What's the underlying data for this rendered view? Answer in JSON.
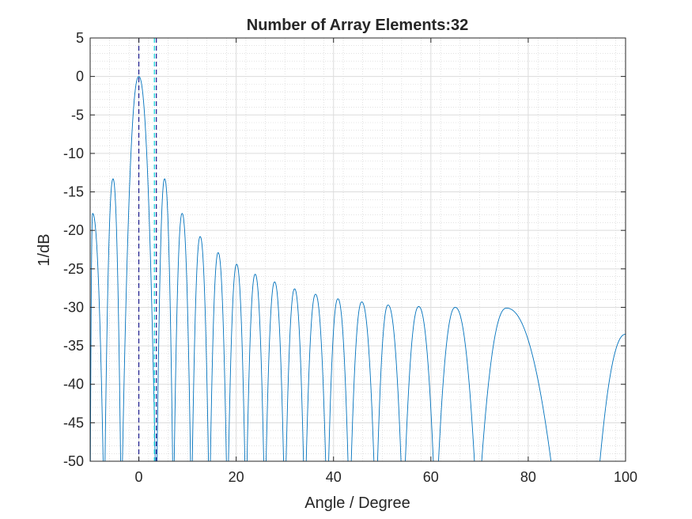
{
  "chart_data": {
    "type": "line",
    "title": "Number of Array Elements:32",
    "xlabel": "Angle / Degree",
    "ylabel": "1/dB",
    "xlim": [
      -10,
      100
    ],
    "ylim": [
      -50,
      5
    ],
    "xticks": [
      0,
      20,
      40,
      60,
      80,
      100
    ],
    "yticks": [
      5,
      0,
      -5,
      -10,
      -15,
      -20,
      -25,
      -30,
      -35,
      -40,
      -45,
      -50
    ],
    "grid": "major and minor",
    "series": [
      {
        "color": "#0072bd",
        "lobes": [
          {
            "start": -10.0,
            "end": -7.1,
            "peak_x": -9.5,
            "peak_y": -17.8
          },
          {
            "start": -7.1,
            "end": -3.6,
            "peak_x": -5.3,
            "peak_y": -13.3
          },
          {
            "start": -3.6,
            "end": 3.6,
            "peak_x": 0,
            "peak_y": 0
          },
          {
            "start": 3.6,
            "end": 7.1,
            "peak_x": 5.3,
            "peak_y": -13.3
          },
          {
            "start": 7.1,
            "end": 10.8,
            "peak_x": 8.9,
            "peak_y": -17.8
          },
          {
            "start": 10.8,
            "end": 14.5,
            "peak_x": 12.6,
            "peak_y": -20.8
          },
          {
            "start": 14.5,
            "end": 18.2,
            "peak_x": 16.3,
            "peak_y": -22.9
          },
          {
            "start": 18.2,
            "end": 22.0,
            "peak_x": 20.1,
            "peak_y": -24.4
          },
          {
            "start": 22.0,
            "end": 25.9,
            "peak_x": 23.9,
            "peak_y": -25.7
          },
          {
            "start": 25.9,
            "end": 30.0,
            "peak_x": 27.9,
            "peak_y": -26.7
          },
          {
            "start": 30.0,
            "end": 34.1,
            "peak_x": 32.0,
            "peak_y": -27.6
          },
          {
            "start": 34.1,
            "end": 38.7,
            "peak_x": 36.3,
            "peak_y": -28.3
          },
          {
            "start": 38.7,
            "end": 43.3,
            "peak_x": 40.9,
            "peak_y": -28.9
          },
          {
            "start": 43.3,
            "end": 48.7,
            "peak_x": 45.8,
            "peak_y": -29.3
          },
          {
            "start": 48.7,
            "end": 54.3,
            "peak_x": 51.2,
            "peak_y": -29.7
          },
          {
            "start": 54.3,
            "end": 61.0,
            "peak_x": 57.5,
            "peak_y": -29.9
          },
          {
            "start": 61.0,
            "end": 69.6,
            "peak_x": 65.0,
            "peak_y": -30.0
          },
          {
            "start": 69.6,
            "end": 86.2,
            "peak_x": 75.5,
            "peak_y": -30.1
          },
          {
            "start": 93.7,
            "end": 100,
            "peak_x": 100,
            "peak_y": -33.5
          }
        ]
      }
    ],
    "vertical_lines": [
      {
        "x": 0,
        "color": "#1a1a8c",
        "style": "dashed"
      },
      {
        "x": 3.2,
        "color": "#00cfd6",
        "style": "dashed"
      },
      {
        "x": 3.6,
        "color": "#1a1a8c",
        "style": "dashed"
      }
    ]
  }
}
